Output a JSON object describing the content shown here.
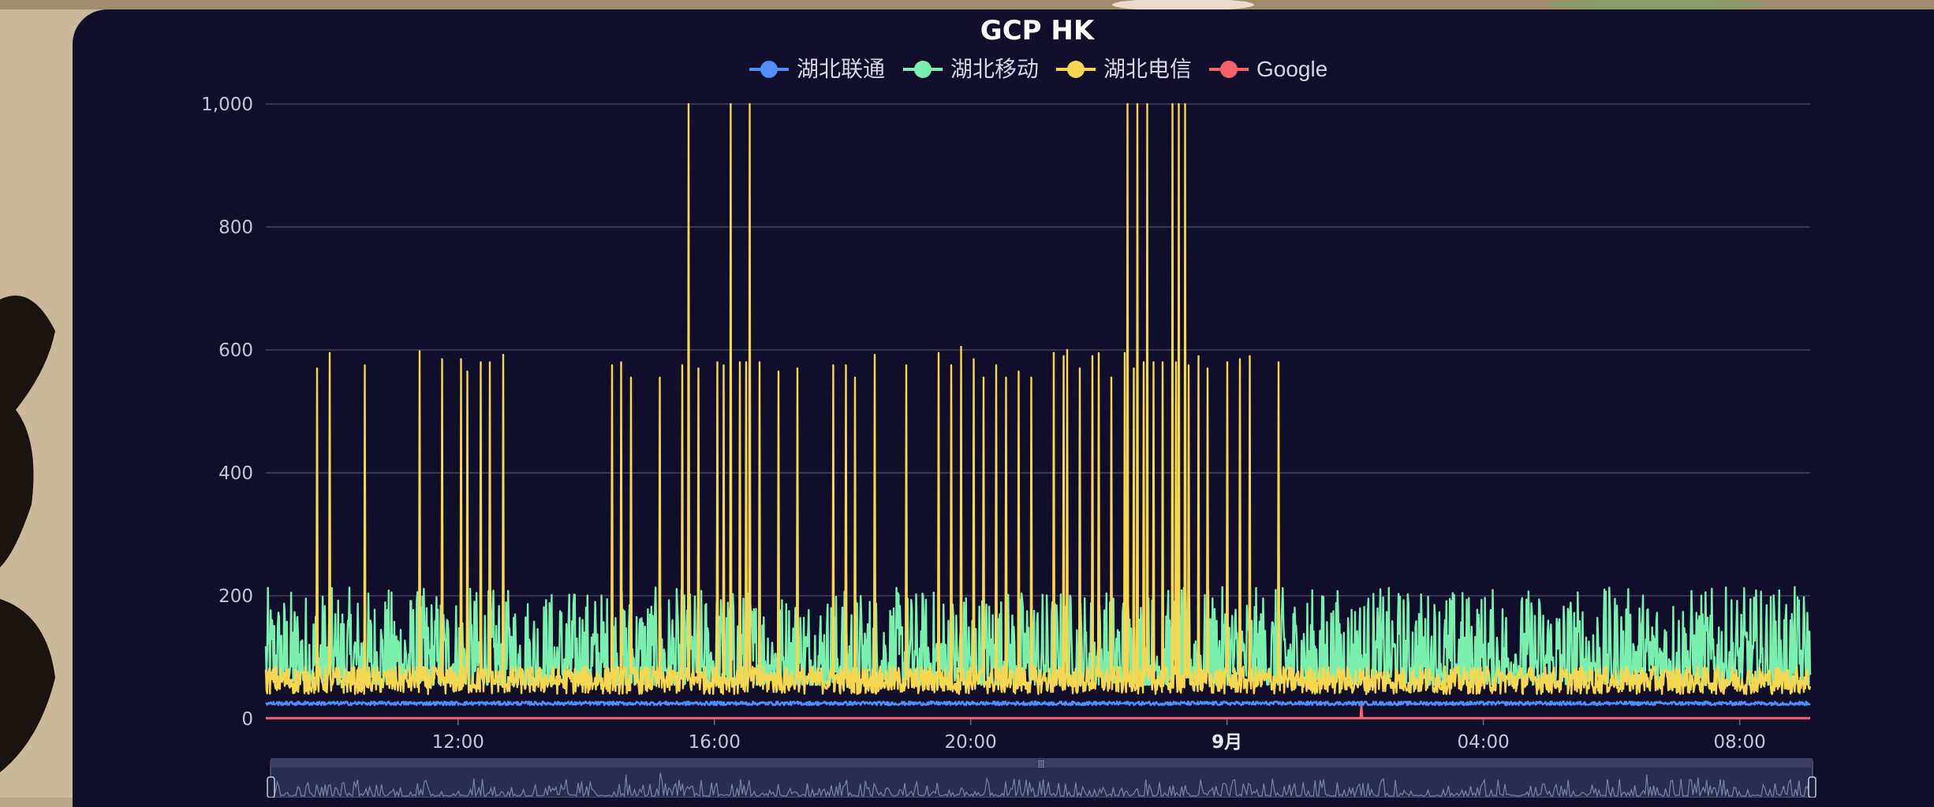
{
  "chart_data": {
    "type": "line",
    "title": "GCP HK",
    "legend_position": "top-center",
    "grid": true,
    "ylim": [
      0,
      1000
    ],
    "yticks": [
      0,
      200,
      400,
      600,
      800,
      1000
    ],
    "ytick_labels": [
      "0",
      "200",
      "400",
      "600",
      "800",
      "1,000"
    ],
    "x_range_hours": [
      9.0,
      33.1
    ],
    "xticks": [
      {
        "hour": 12,
        "label": "12:00"
      },
      {
        "hour": 16,
        "label": "16:00"
      },
      {
        "hour": 20,
        "label": "20:00"
      },
      {
        "hour": 24,
        "label": "9月",
        "bold": true
      },
      {
        "hour": 28,
        "label": "04:00"
      },
      {
        "hour": 32,
        "label": "08:00"
      }
    ],
    "series": [
      {
        "name": "湖北联通",
        "color": "#4f8df7",
        "base": 25,
        "noise": 6,
        "spikes": []
      },
      {
        "name": "湖北移动",
        "color": "#7bf0ae",
        "base": 95,
        "noise": 110,
        "spikes": []
      },
      {
        "name": "湖北电信",
        "color": "#f7d752",
        "base": 55,
        "noise": 45,
        "spikes": [
          [
            9.8,
            570
          ],
          [
            10.0,
            595
          ],
          [
            10.55,
            575
          ],
          [
            11.4,
            598
          ],
          [
            11.75,
            585
          ],
          [
            12.05,
            585
          ],
          [
            12.15,
            565
          ],
          [
            12.35,
            580
          ],
          [
            12.5,
            580
          ],
          [
            12.7,
            592
          ],
          [
            14.4,
            575
          ],
          [
            14.55,
            580
          ],
          [
            14.7,
            555
          ],
          [
            15.15,
            555
          ],
          [
            15.5,
            575
          ],
          [
            15.6,
            580
          ],
          [
            15.75,
            570
          ],
          [
            15.6,
            1000
          ],
          [
            16.25,
            1000
          ],
          [
            16.55,
            1000
          ],
          [
            16.05,
            580
          ],
          [
            16.15,
            575
          ],
          [
            16.4,
            580
          ],
          [
            16.5,
            580
          ],
          [
            16.7,
            580
          ],
          [
            17.0,
            565
          ],
          [
            17.3,
            570
          ],
          [
            17.85,
            575
          ],
          [
            18.05,
            575
          ],
          [
            18.2,
            555
          ],
          [
            18.5,
            592
          ],
          [
            19.0,
            575
          ],
          [
            19.5,
            595
          ],
          [
            19.7,
            575
          ],
          [
            19.85,
            605
          ],
          [
            20.05,
            585
          ],
          [
            20.2,
            555
          ],
          [
            20.4,
            575
          ],
          [
            20.55,
            555
          ],
          [
            20.75,
            565
          ],
          [
            20.95,
            555
          ],
          [
            21.3,
            595
          ],
          [
            21.45,
            590
          ],
          [
            21.5,
            600
          ],
          [
            21.7,
            570
          ],
          [
            21.9,
            590
          ],
          [
            22.0,
            595
          ],
          [
            22.2,
            555
          ],
          [
            22.4,
            595
          ],
          [
            22.45,
            1000
          ],
          [
            22.6,
            1000
          ],
          [
            22.75,
            1000
          ],
          [
            22.55,
            570
          ],
          [
            22.7,
            580
          ],
          [
            22.85,
            580
          ],
          [
            23.0,
            580
          ],
          [
            23.2,
            580
          ],
          [
            23.15,
            1000
          ],
          [
            23.25,
            1000
          ],
          [
            23.35,
            1000
          ],
          [
            23.4,
            575
          ],
          [
            23.55,
            590
          ],
          [
            23.7,
            570
          ],
          [
            24.0,
            580
          ],
          [
            24.2,
            585
          ],
          [
            24.35,
            590
          ],
          [
            24.8,
            580
          ]
        ]
      },
      {
        "name": "Google",
        "color": "#f5606a",
        "base": 1,
        "noise": 0,
        "spikes": [
          [
            26.1,
            20
          ]
        ]
      }
    ],
    "zoom_slider": true
  }
}
